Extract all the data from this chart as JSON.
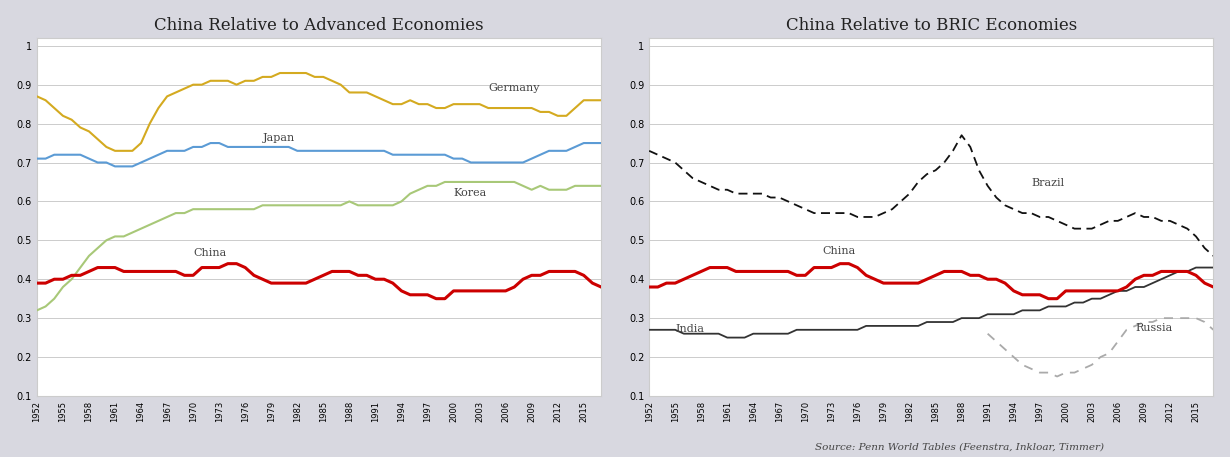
{
  "left_title": "China Relative to Advanced Economies",
  "right_title": "China Relative to BRIC Economies",
  "source_text": "Source: Penn World Tables (Feenstra, Inkloar, Timmer)",
  "years": [
    1952,
    1953,
    1954,
    1955,
    1956,
    1957,
    1958,
    1959,
    1960,
    1961,
    1962,
    1963,
    1964,
    1965,
    1966,
    1967,
    1968,
    1969,
    1970,
    1971,
    1972,
    1973,
    1974,
    1975,
    1976,
    1977,
    1978,
    1979,
    1980,
    1981,
    1982,
    1983,
    1984,
    1985,
    1986,
    1987,
    1988,
    1989,
    1990,
    1991,
    1992,
    1993,
    1994,
    1995,
    1996,
    1997,
    1998,
    1999,
    2000,
    2001,
    2002,
    2003,
    2004,
    2005,
    2006,
    2007,
    2008,
    2009,
    2010,
    2011,
    2012,
    2013,
    2014,
    2015,
    2016,
    2017
  ],
  "germany": [
    0.87,
    0.86,
    0.84,
    0.82,
    0.81,
    0.79,
    0.78,
    0.76,
    0.74,
    0.73,
    0.73,
    0.73,
    0.75,
    0.8,
    0.84,
    0.87,
    0.88,
    0.89,
    0.9,
    0.9,
    0.91,
    0.91,
    0.91,
    0.9,
    0.91,
    0.91,
    0.92,
    0.92,
    0.93,
    0.93,
    0.93,
    0.93,
    0.92,
    0.92,
    0.91,
    0.9,
    0.88,
    0.88,
    0.88,
    0.87,
    0.86,
    0.85,
    0.85,
    0.86,
    0.85,
    0.85,
    0.84,
    0.84,
    0.85,
    0.85,
    0.85,
    0.85,
    0.84,
    0.84,
    0.84,
    0.84,
    0.84,
    0.84,
    0.83,
    0.83,
    0.82,
    0.82,
    0.84,
    0.86,
    0.86,
    0.86
  ],
  "japan": [
    0.71,
    0.71,
    0.72,
    0.72,
    0.72,
    0.72,
    0.71,
    0.7,
    0.7,
    0.69,
    0.69,
    0.69,
    0.7,
    0.71,
    0.72,
    0.73,
    0.73,
    0.73,
    0.74,
    0.74,
    0.75,
    0.75,
    0.74,
    0.74,
    0.74,
    0.74,
    0.74,
    0.74,
    0.74,
    0.74,
    0.73,
    0.73,
    0.73,
    0.73,
    0.73,
    0.73,
    0.73,
    0.73,
    0.73,
    0.73,
    0.73,
    0.72,
    0.72,
    0.72,
    0.72,
    0.72,
    0.72,
    0.72,
    0.71,
    0.71,
    0.7,
    0.7,
    0.7,
    0.7,
    0.7,
    0.7,
    0.7,
    0.71,
    0.72,
    0.73,
    0.73,
    0.73,
    0.74,
    0.75,
    0.75,
    0.75
  ],
  "korea": [
    0.32,
    0.33,
    0.35,
    0.38,
    0.4,
    0.43,
    0.46,
    0.48,
    0.5,
    0.51,
    0.51,
    0.52,
    0.53,
    0.54,
    0.55,
    0.56,
    0.57,
    0.57,
    0.58,
    0.58,
    0.58,
    0.58,
    0.58,
    0.58,
    0.58,
    0.58,
    0.59,
    0.59,
    0.59,
    0.59,
    0.59,
    0.59,
    0.59,
    0.59,
    0.59,
    0.59,
    0.6,
    0.59,
    0.59,
    0.59,
    0.59,
    0.59,
    0.6,
    0.62,
    0.63,
    0.64,
    0.64,
    0.65,
    0.65,
    0.65,
    0.65,
    0.65,
    0.65,
    0.65,
    0.65,
    0.65,
    0.64,
    0.63,
    0.64,
    0.63,
    0.63,
    0.63,
    0.64,
    0.64,
    0.64,
    0.64
  ],
  "china_left": [
    0.39,
    0.39,
    0.4,
    0.4,
    0.41,
    0.41,
    0.42,
    0.43,
    0.43,
    0.43,
    0.42,
    0.42,
    0.42,
    0.42,
    0.42,
    0.42,
    0.42,
    0.41,
    0.41,
    0.43,
    0.43,
    0.43,
    0.44,
    0.44,
    0.43,
    0.41,
    0.4,
    0.39,
    0.39,
    0.39,
    0.39,
    0.39,
    0.4,
    0.41,
    0.42,
    0.42,
    0.42,
    0.41,
    0.41,
    0.4,
    0.4,
    0.39,
    0.37,
    0.36,
    0.36,
    0.36,
    0.35,
    0.35,
    0.37,
    0.37,
    0.37,
    0.37,
    0.37,
    0.37,
    0.37,
    0.38,
    0.4,
    0.41,
    0.41,
    0.42,
    0.42,
    0.42,
    0.42,
    0.41,
    0.39,
    0.38
  ],
  "brazil": [
    0.73,
    0.72,
    0.71,
    0.7,
    0.68,
    0.66,
    0.65,
    0.64,
    0.63,
    0.63,
    0.62,
    0.62,
    0.62,
    0.62,
    0.61,
    0.61,
    0.6,
    0.59,
    0.58,
    0.57,
    0.57,
    0.57,
    0.57,
    0.57,
    0.56,
    0.56,
    0.56,
    0.57,
    0.58,
    0.6,
    0.62,
    0.65,
    0.67,
    0.68,
    0.7,
    0.73,
    0.77,
    0.74,
    0.68,
    0.64,
    0.61,
    0.59,
    0.58,
    0.57,
    0.57,
    0.56,
    0.56,
    0.55,
    0.54,
    0.53,
    0.53,
    0.53,
    0.54,
    0.55,
    0.55,
    0.56,
    0.57,
    0.56,
    0.56,
    0.55,
    0.55,
    0.54,
    0.53,
    0.51,
    0.48,
    0.46
  ],
  "china_right": [
    0.38,
    0.38,
    0.39,
    0.39,
    0.4,
    0.41,
    0.42,
    0.43,
    0.43,
    0.43,
    0.42,
    0.42,
    0.42,
    0.42,
    0.42,
    0.42,
    0.42,
    0.41,
    0.41,
    0.43,
    0.43,
    0.43,
    0.44,
    0.44,
    0.43,
    0.41,
    0.4,
    0.39,
    0.39,
    0.39,
    0.39,
    0.39,
    0.4,
    0.41,
    0.42,
    0.42,
    0.42,
    0.41,
    0.41,
    0.4,
    0.4,
    0.39,
    0.37,
    0.36,
    0.36,
    0.36,
    0.35,
    0.35,
    0.37,
    0.37,
    0.37,
    0.37,
    0.37,
    0.37,
    0.37,
    0.38,
    0.4,
    0.41,
    0.41,
    0.42,
    0.42,
    0.42,
    0.42,
    0.41,
    0.39,
    0.38
  ],
  "india": [
    0.27,
    0.27,
    0.27,
    0.27,
    0.26,
    0.26,
    0.26,
    0.26,
    0.26,
    0.25,
    0.25,
    0.25,
    0.26,
    0.26,
    0.26,
    0.26,
    0.26,
    0.27,
    0.27,
    0.27,
    0.27,
    0.27,
    0.27,
    0.27,
    0.27,
    0.28,
    0.28,
    0.28,
    0.28,
    0.28,
    0.28,
    0.28,
    0.29,
    0.29,
    0.29,
    0.29,
    0.3,
    0.3,
    0.3,
    0.31,
    0.31,
    0.31,
    0.31,
    0.32,
    0.32,
    0.32,
    0.33,
    0.33,
    0.33,
    0.34,
    0.34,
    0.35,
    0.35,
    0.36,
    0.37,
    0.37,
    0.38,
    0.38,
    0.39,
    0.4,
    0.41,
    0.42,
    0.42,
    0.43,
    0.43,
    0.43
  ],
  "russia": [
    null,
    null,
    null,
    null,
    null,
    null,
    null,
    null,
    null,
    null,
    null,
    null,
    null,
    null,
    null,
    null,
    null,
    null,
    null,
    null,
    null,
    null,
    null,
    null,
    null,
    null,
    null,
    null,
    null,
    null,
    null,
    null,
    null,
    null,
    null,
    null,
    null,
    null,
    null,
    0.26,
    0.24,
    0.22,
    0.2,
    0.18,
    0.17,
    0.16,
    0.16,
    0.15,
    0.16,
    0.16,
    0.17,
    0.18,
    0.2,
    0.21,
    0.24,
    0.27,
    0.28,
    0.29,
    0.29,
    0.3,
    0.3,
    0.3,
    0.3,
    0.3,
    0.29,
    0.27
  ],
  "ylim_left": [
    0.1,
    1.02
  ],
  "ylim_right": [
    0.1,
    1.02
  ],
  "yticks": [
    0.1,
    0.2,
    0.3,
    0.4,
    0.5,
    0.6,
    0.7,
    0.8,
    0.9,
    1.0
  ],
  "ytick_labels": [
    "0.1",
    "0.2",
    "0.3",
    "0.4",
    "0.5",
    "0.6",
    "0.7",
    "0.8",
    "0.9",
    "1"
  ],
  "outer_bg": "#d8d8e0",
  "panel_bg": "#ffffff",
  "panel_border": "#cccccc",
  "grid_color": "#cccccc",
  "germany_color": "#d4aa20",
  "japan_color": "#5b9bd5",
  "korea_color": "#a8c878",
  "china_color": "#cc0000",
  "brazil_color": "#111111",
  "india_color": "#333333",
  "russia_color": "#aaaaaa"
}
